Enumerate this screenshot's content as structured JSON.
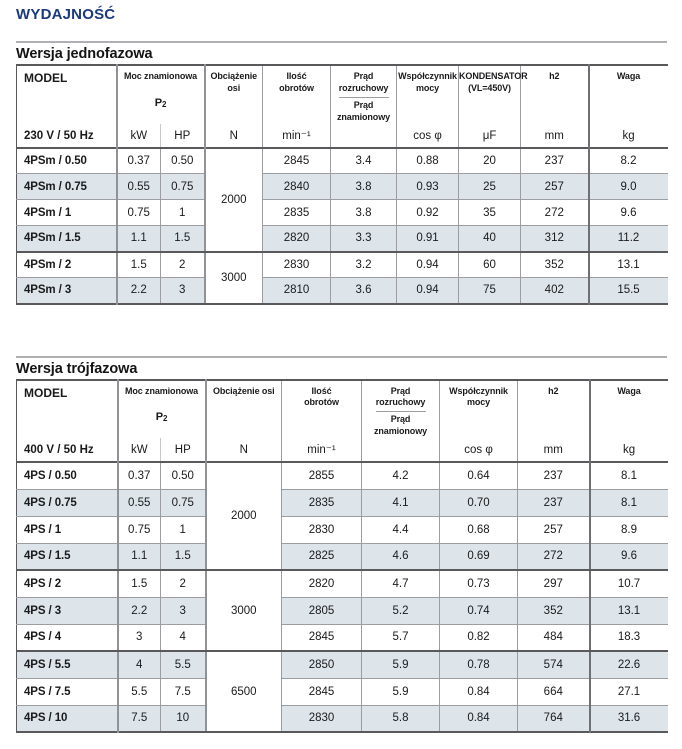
{
  "page": {
    "title": "WYDAJNOŚĆ"
  },
  "colors": {
    "title_blue": "#1a3a7c",
    "row_stripe": "#dde5ea",
    "border_dark": "#59595c",
    "rule_gray": "#aeb0b3"
  },
  "tables": [
    {
      "heading": "Wersja jednofazowa",
      "header": {
        "model": "MODEL",
        "power_title": "Moc znamionowa",
        "power_sub": "P2",
        "axis_load": "Obciążenie osi",
        "speed": "Ilość\nobrotów",
        "current_top": "Prąd\nrozruchowy",
        "current_bottom": "Prąd\nznamionowy",
        "power_factor": "Współczynnik\nmocy",
        "capacitor": "KONDENSATOR\n(VL=450V)",
        "h2": "h2",
        "weight": "Waga"
      },
      "units": {
        "voltage": "230 V / 50 Hz",
        "kw": "kW",
        "hp": "HP",
        "n": "N",
        "rpm": "min⁻¹",
        "current": "",
        "cos": "cos φ",
        "uf": "μF",
        "h2": "mm",
        "kg": "kg"
      },
      "groups": [
        {
          "axis_load": "2000",
          "span": 4
        },
        {
          "axis_load": "3000",
          "span": 2
        }
      ],
      "rows": [
        {
          "model": "4PSm / 0.50",
          "kw": "0.37",
          "hp": "0.50",
          "rpm": "2845",
          "current": "3.4",
          "cos": "0.88",
          "uf": "20",
          "h2": "237",
          "kg": "8.2"
        },
        {
          "model": "4PSm / 0.75",
          "kw": "0.55",
          "hp": "0.75",
          "rpm": "2840",
          "current": "3.8",
          "cos": "0.93",
          "uf": "25",
          "h2": "257",
          "kg": "9.0"
        },
        {
          "model": "4PSm / 1",
          "kw": "0.75",
          "hp": "1",
          "rpm": "2835",
          "current": "3.8",
          "cos": "0.92",
          "uf": "35",
          "h2": "272",
          "kg": "9.6"
        },
        {
          "model": "4PSm / 1.5",
          "kw": "1.1",
          "hp": "1.5",
          "rpm": "2820",
          "current": "3.3",
          "cos": "0.91",
          "uf": "40",
          "h2": "312",
          "kg": "11.2"
        },
        {
          "model": "4PSm / 2",
          "kw": "1.5",
          "hp": "2",
          "rpm": "2830",
          "current": "3.2",
          "cos": "0.94",
          "uf": "60",
          "h2": "352",
          "kg": "13.1"
        },
        {
          "model": "4PSm / 3",
          "kw": "2.2",
          "hp": "3",
          "rpm": "2810",
          "current": "3.6",
          "cos": "0.94",
          "uf": "75",
          "h2": "402",
          "kg": "15.5"
        }
      ]
    },
    {
      "heading": "Wersja trójfazowa",
      "header": {
        "model": "MODEL",
        "power_title": "Moc znamionowa",
        "power_sub": "P2",
        "axis_load": "Obciążenie osi",
        "speed": "Ilość\nobrotów",
        "current_top": "Prąd\nrozruchowy",
        "current_bottom": "Prąd\nznamionowy",
        "power_factor": "Współczynnik\nmocy",
        "h2": "h2",
        "weight": "Waga"
      },
      "units": {
        "voltage": "400 V / 50 Hz",
        "kw": "kW",
        "hp": "HP",
        "n": "N",
        "rpm": "min⁻¹",
        "current": "",
        "cos": "cos φ",
        "h2": "mm",
        "kg": "kg"
      },
      "groups": [
        {
          "axis_load": "2000",
          "span": 4
        },
        {
          "axis_load": "3000",
          "span": 3
        },
        {
          "axis_load": "6500",
          "span": 3
        }
      ],
      "rows": [
        {
          "model": "4PS / 0.50",
          "kw": "0.37",
          "hp": "0.50",
          "rpm": "2855",
          "current": "4.2",
          "cos": "0.64",
          "h2": "237",
          "kg": "8.1"
        },
        {
          "model": "4PS / 0.75",
          "kw": "0.55",
          "hp": "0.75",
          "rpm": "2835",
          "current": "4.1",
          "cos": "0.70",
          "h2": "237",
          "kg": "8.1"
        },
        {
          "model": "4PS / 1",
          "kw": "0.75",
          "hp": "1",
          "rpm": "2830",
          "current": "4.4",
          "cos": "0.68",
          "h2": "257",
          "kg": "8.9"
        },
        {
          "model": "4PS / 1.5",
          "kw": "1.1",
          "hp": "1.5",
          "rpm": "2825",
          "current": "4.6",
          "cos": "0.69",
          "h2": "272",
          "kg": "9.6"
        },
        {
          "model": "4PS / 2",
          "kw": "1.5",
          "hp": "2",
          "rpm": "2820",
          "current": "4.7",
          "cos": "0.73",
          "h2": "297",
          "kg": "10.7"
        },
        {
          "model": "4PS / 3",
          "kw": "2.2",
          "hp": "3",
          "rpm": "2805",
          "current": "5.2",
          "cos": "0.74",
          "h2": "352",
          "kg": "13.1"
        },
        {
          "model": "4PS / 4",
          "kw": "3",
          "hp": "4",
          "rpm": "2845",
          "current": "5.7",
          "cos": "0.82",
          "h2": "484",
          "kg": "18.3"
        },
        {
          "model": "4PS / 5.5",
          "kw": "4",
          "hp": "5.5",
          "rpm": "2850",
          "current": "5.9",
          "cos": "0.78",
          "h2": "574",
          "kg": "22.6"
        },
        {
          "model": "4PS / 7.5",
          "kw": "5.5",
          "hp": "7.5",
          "rpm": "2845",
          "current": "5.9",
          "cos": "0.84",
          "h2": "664",
          "kg": "27.1"
        },
        {
          "model": "4PS / 10",
          "kw": "7.5",
          "hp": "10",
          "rpm": "2830",
          "current": "5.8",
          "cos": "0.84",
          "h2": "764",
          "kg": "31.6"
        }
      ]
    }
  ]
}
